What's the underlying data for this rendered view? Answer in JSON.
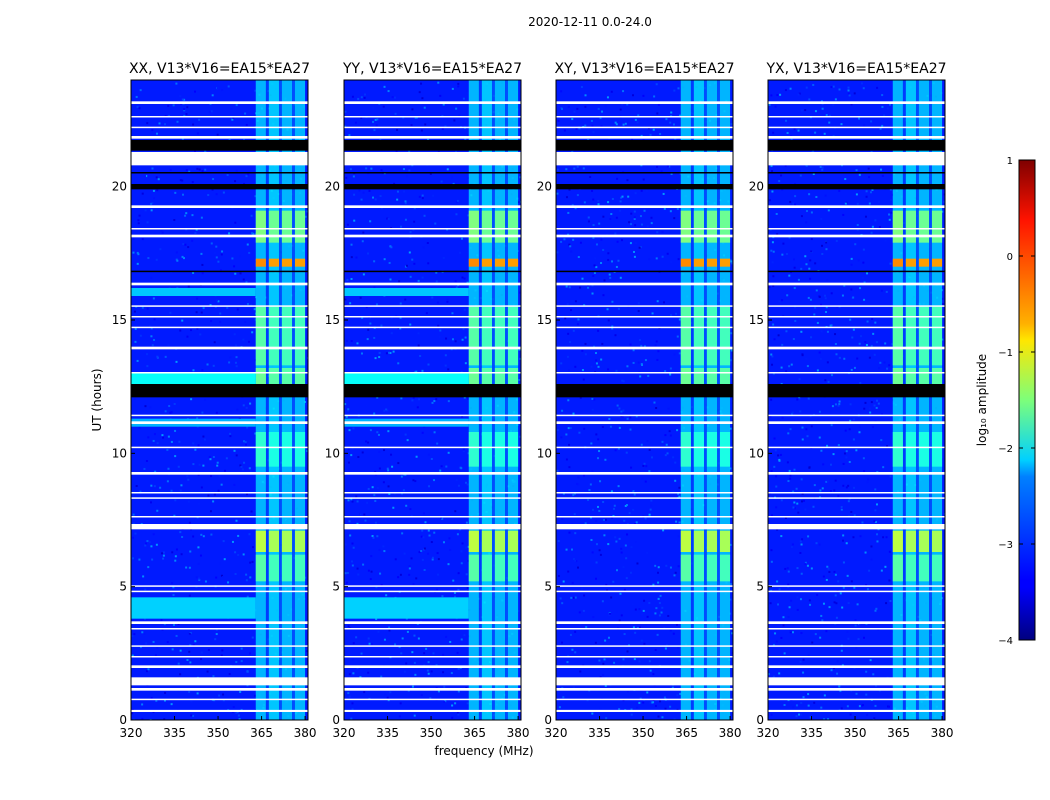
{
  "figure_title": "2020-12-11 0.0-24.0",
  "chart_data": {
    "type": "heatmap",
    "x_label": "frequency (MHz)",
    "y_label": "UT (hours)",
    "xlim": [
      320,
      381
    ],
    "ylim": [
      0,
      24
    ],
    "x_ticks": [
      320,
      335,
      350,
      365,
      380
    ],
    "y_ticks": [
      0,
      5,
      10,
      15,
      20
    ],
    "panels": [
      {
        "title": "XX, V13*V16=EA15*EA27"
      },
      {
        "title": "YY, V13*V16=EA15*EA27"
      },
      {
        "title": "XY, V13*V16=EA15*EA27"
      },
      {
        "title": "YX, V13*V16=EA15*EA27"
      }
    ],
    "colorbar": {
      "label": "log₁₀ amplitude",
      "range": [
        -4,
        1
      ],
      "ticks": [
        1,
        0,
        -1,
        -2,
        -3,
        -4
      ],
      "colormap": "jet"
    },
    "signal_band_mhz": [
      363,
      381
    ],
    "flagged_ut_hours": [
      [
        0.3,
        0.38
      ],
      [
        0.75,
        0.8
      ],
      [
        1.1,
        1.2
      ],
      [
        1.3,
        1.6
      ],
      [
        1.95,
        2.05
      ],
      [
        2.35,
        2.4
      ],
      [
        2.75,
        2.8
      ],
      [
        3.4,
        3.45
      ],
      [
        3.6,
        3.7
      ],
      [
        4.8,
        4.85
      ],
      [
        5.0,
        5.05
      ],
      [
        7.15,
        7.35
      ],
      [
        7.6,
        7.65
      ],
      [
        8.3,
        8.35
      ],
      [
        8.5,
        8.55
      ],
      [
        9.2,
        9.3
      ],
      [
        10.2,
        10.25
      ],
      [
        11.1,
        11.2
      ],
      [
        11.4,
        11.45
      ],
      [
        13.0,
        13.05
      ],
      [
        13.9,
        14.0
      ],
      [
        14.7,
        14.75
      ],
      [
        15.1,
        15.15
      ],
      [
        15.5,
        15.55
      ],
      [
        16.3,
        16.4
      ],
      [
        18.1,
        18.2
      ],
      [
        18.4,
        18.45
      ],
      [
        19.2,
        19.3
      ],
      [
        20.8,
        21.3
      ],
      [
        21.8,
        21.9
      ],
      [
        22.2,
        22.25
      ],
      [
        22.6,
        22.65
      ],
      [
        23.1,
        23.2
      ]
    ],
    "no_data_ut_hours": [
      [
        12.1,
        12.6
      ],
      [
        16.8,
        16.85
      ],
      [
        19.9,
        20.1
      ],
      [
        21.35,
        21.75
      ],
      [
        20.5,
        20.55
      ]
    ],
    "bright_ut_hours": [
      {
        "range": [
          17.0,
          17.3
        ],
        "log_amp": -0.3
      },
      {
        "range": [
          6.5,
          6.8
        ],
        "log_amp": -0.9
      },
      {
        "range": [
          18.5,
          19.0
        ],
        "log_amp": -1.4
      },
      {
        "range": [
          12.6,
          13.0
        ],
        "log_amp": -1.6
      }
    ]
  }
}
